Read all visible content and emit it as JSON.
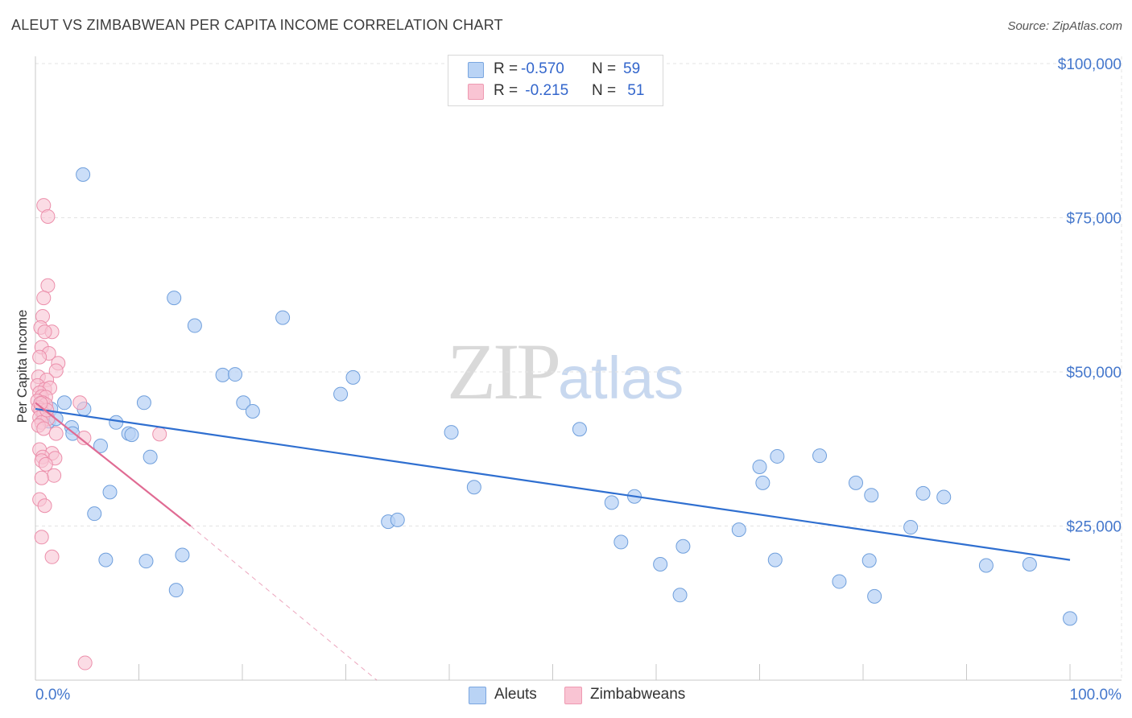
{
  "title": "ALEUT VS ZIMBABWEAN PER CAPITA INCOME CORRELATION CHART",
  "source": "Source: ZipAtlas.com",
  "watermark": {
    "zip": "ZIP",
    "atlas": "atlas"
  },
  "legend": {
    "rows": [
      {
        "swatch_fill": "#b9d3f5",
        "swatch_stroke": "#7aa6e0",
        "r_label": "R = ",
        "r_value": "-0.570",
        "n_label": "N = ",
        "n_value": "59"
      },
      {
        "swatch_fill": "#f9c4d3",
        "swatch_stroke": "#ee9ab2",
        "r_label": "R = ",
        "r_value": " -0.215",
        "n_label": "N = ",
        "n_value": " 51"
      }
    ]
  },
  "bottom_legend": [
    {
      "label": "Aleuts",
      "swatch_fill": "#b9d3f5",
      "swatch_stroke": "#7aa6e0"
    },
    {
      "label": "Zimbabweans",
      "swatch_fill": "#f9c4d3",
      "swatch_stroke": "#ee9ab2"
    }
  ],
  "chart_data": {
    "type": "scatter",
    "title": "ALEUT VS ZIMBABWEAN PER CAPITA INCOME CORRELATION CHART",
    "xlabel": "",
    "ylabel": "Per Capita Income",
    "xlim": [
      0,
      100
    ],
    "ylim": [
      0,
      105000
    ],
    "x_tick_labels": [
      {
        "value": 0,
        "label": "0.0%"
      },
      {
        "value": 100,
        "label": "100.0%"
      }
    ],
    "y_tick_labels": [
      {
        "value": 25000,
        "label": "$25,000"
      },
      {
        "value": 50000,
        "label": "$50,000"
      },
      {
        "value": 75000,
        "label": "$75,000"
      },
      {
        "value": 100000,
        "label": "$100,000"
      }
    ],
    "grid": true,
    "colors": {
      "aleut_fill": "#b9d3f5",
      "aleut_stroke": "#6f9fdc",
      "aleut_line": "#2f6fd0",
      "zim_fill": "#f9c4d3",
      "zim_stroke": "#ec8fab",
      "zim_line": "#e06b93",
      "grid": "#e3e3e3",
      "axis": "#c8c8c8"
    },
    "series": [
      {
        "name": "Aleuts",
        "r": -0.57,
        "n": 59,
        "trend": {
          "x0": 0,
          "y0": 44000,
          "x1": 100,
          "y1": 19500
        },
        "points": [
          [
            4.6,
            82000
          ],
          [
            0.5,
            45000
          ],
          [
            0.8,
            43000
          ],
          [
            1.3,
            42000
          ],
          [
            1.5,
            44000
          ],
          [
            2.8,
            45000
          ],
          [
            3.5,
            41000
          ],
          [
            3.6,
            40000
          ],
          [
            4.7,
            44000
          ],
          [
            6.3,
            38000
          ],
          [
            5.7,
            27000
          ],
          [
            7.2,
            30500
          ],
          [
            6.8,
            19500
          ],
          [
            7.8,
            41800
          ],
          [
            9.0,
            40000
          ],
          [
            9.3,
            39800
          ],
          [
            10.5,
            45000
          ],
          [
            10.7,
            19300
          ],
          [
            11.1,
            36200
          ],
          [
            13.4,
            62000
          ],
          [
            14.2,
            20300
          ],
          [
            13.6,
            14600
          ],
          [
            15.4,
            57500
          ],
          [
            18.1,
            49500
          ],
          [
            19.3,
            49600
          ],
          [
            20.1,
            45000
          ],
          [
            21.0,
            43600
          ],
          [
            23.9,
            58800
          ],
          [
            29.5,
            46400
          ],
          [
            30.7,
            49100
          ],
          [
            34.1,
            25700
          ],
          [
            35.0,
            26000
          ],
          [
            40.2,
            40200
          ],
          [
            42.4,
            31300
          ],
          [
            52.6,
            40700
          ],
          [
            55.7,
            28800
          ],
          [
            56.6,
            22400
          ],
          [
            57.9,
            29800
          ],
          [
            60.4,
            18800
          ],
          [
            62.3,
            13800
          ],
          [
            62.6,
            21700
          ],
          [
            68.0,
            24400
          ],
          [
            70.0,
            34600
          ],
          [
            70.3,
            32000
          ],
          [
            71.5,
            19500
          ],
          [
            71.7,
            36300
          ],
          [
            75.8,
            36400
          ],
          [
            77.7,
            16000
          ],
          [
            79.3,
            32000
          ],
          [
            80.6,
            19400
          ],
          [
            80.8,
            30000
          ],
          [
            81.1,
            13600
          ],
          [
            84.6,
            24800
          ],
          [
            85.8,
            30300
          ],
          [
            87.8,
            29700
          ],
          [
            91.9,
            18600
          ],
          [
            96.1,
            18800
          ],
          [
            100.0,
            10000
          ],
          [
            2.0,
            42400
          ]
        ]
      },
      {
        "name": "Zimbabweans",
        "r": -0.215,
        "n": 51,
        "trend": {
          "x0": 0,
          "y0": 45000,
          "x1": 15.0,
          "y1": 25000
        },
        "trend_dashed": {
          "x0": 15.0,
          "y0": 25000,
          "x1": 33.0,
          "y1": 0
        },
        "points": [
          [
            0.8,
            77000
          ],
          [
            1.2,
            75200
          ],
          [
            1.2,
            64000
          ],
          [
            0.8,
            62000
          ],
          [
            0.7,
            59000
          ],
          [
            0.5,
            57200
          ],
          [
            1.6,
            56500
          ],
          [
            0.9,
            56500
          ],
          [
            0.6,
            54000
          ],
          [
            1.3,
            53000
          ],
          [
            0.4,
            52400
          ],
          [
            2.2,
            51400
          ],
          [
            2.0,
            50200
          ],
          [
            0.3,
            49200
          ],
          [
            1.1,
            48700
          ],
          [
            0.2,
            47800
          ],
          [
            0.9,
            47200
          ],
          [
            1.4,
            47400
          ],
          [
            0.4,
            46600
          ],
          [
            0.6,
            46000
          ],
          [
            1.0,
            45900
          ],
          [
            0.2,
            45300
          ],
          [
            0.7,
            45000
          ],
          [
            1.0,
            44700
          ],
          [
            0.3,
            44200
          ],
          [
            0.5,
            43800
          ],
          [
            0.8,
            43200
          ],
          [
            0.4,
            42600
          ],
          [
            1.2,
            42400
          ],
          [
            0.6,
            41800
          ],
          [
            0.3,
            41300
          ],
          [
            0.8,
            40800
          ],
          [
            2.0,
            40000
          ],
          [
            0.4,
            37400
          ],
          [
            1.6,
            36800
          ],
          [
            0.7,
            36200
          ],
          [
            1.9,
            36000
          ],
          [
            0.6,
            35600
          ],
          [
            1.0,
            35000
          ],
          [
            1.8,
            33200
          ],
          [
            0.6,
            32800
          ],
          [
            0.4,
            29300
          ],
          [
            0.9,
            28300
          ],
          [
            0.6,
            23200
          ],
          [
            1.6,
            20000
          ],
          [
            4.3,
            45000
          ],
          [
            4.7,
            39300
          ],
          [
            12.0,
            39900
          ],
          [
            4.8,
            2800
          ],
          [
            1.1,
            43800
          ],
          [
            0.5,
            44900
          ]
        ]
      }
    ]
  }
}
